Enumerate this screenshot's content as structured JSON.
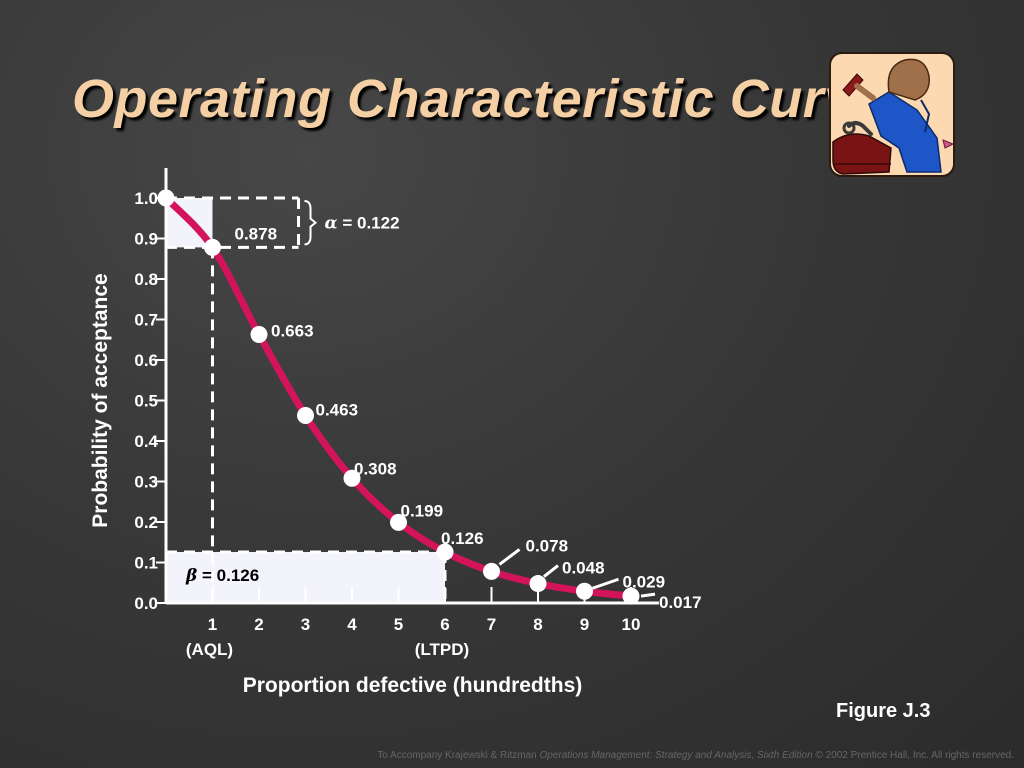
{
  "slide": {
    "title": "Operating Characteristic Curve",
    "figure_label": "Figure J.3",
    "footer_prefix": "To Accompany Krajewski & Ritzman ",
    "footer_book": "Operations Management: Strategy and Analysis, Sixth Edition",
    "footer_suffix": " © 2002 Prentice Hall, Inc. All rights reserved."
  },
  "colors": {
    "curve": "#d4145a",
    "background": "#383838",
    "title": "#f6d0a5",
    "text": "#ffffff",
    "shade": "#f3f3fb"
  },
  "chart_data": {
    "type": "line",
    "xlabel": "Proportion defective (hundredths)",
    "ylabel": "Probability of acceptance",
    "xlim": [
      0,
      10
    ],
    "ylim": [
      0,
      1.0
    ],
    "x_ticks": [
      1,
      2,
      3,
      4,
      5,
      6,
      7,
      8,
      9,
      10
    ],
    "x_tick_labels": [
      "1",
      "2",
      "3",
      "4",
      "5",
      "6",
      "7",
      "8",
      "9",
      "10"
    ],
    "x_tick_sublabels": [
      {
        "x": 1,
        "text": "(AQL)"
      },
      {
        "x": 6,
        "text": "(LTPD)"
      }
    ],
    "y_ticks": [
      0.0,
      0.1,
      0.2,
      0.3,
      0.4,
      0.5,
      0.6,
      0.7,
      0.8,
      0.9,
      1.0
    ],
    "y_tick_labels": [
      "0.0",
      "0.1",
      "0.2",
      "0.3",
      "0.4",
      "0.5",
      "0.6",
      "0.7",
      "0.8",
      "0.9",
      "1.0"
    ],
    "points": [
      {
        "x": 0,
        "y": 1.0,
        "label": ""
      },
      {
        "x": 1,
        "y": 0.878,
        "label": "0.878"
      },
      {
        "x": 2,
        "y": 0.663,
        "label": "0.663"
      },
      {
        "x": 3,
        "y": 0.463,
        "label": "0.463"
      },
      {
        "x": 4,
        "y": 0.308,
        "label": "0.308"
      },
      {
        "x": 5,
        "y": 0.199,
        "label": "0.199"
      },
      {
        "x": 6,
        "y": 0.126,
        "label": "0.126"
      },
      {
        "x": 7,
        "y": 0.078,
        "label": "0.078"
      },
      {
        "x": 8,
        "y": 0.048,
        "label": "0.048"
      },
      {
        "x": 9,
        "y": 0.029,
        "label": "0.029"
      },
      {
        "x": 10,
        "y": 0.017,
        "label": "0.017"
      }
    ],
    "annotations": {
      "alpha": {
        "symbol": "α",
        "text": " = 0.122",
        "value": 0.122
      },
      "beta": {
        "symbol": "β",
        "text": " = 0.126",
        "value": 0.126
      }
    },
    "grid": false,
    "legend": "none"
  }
}
